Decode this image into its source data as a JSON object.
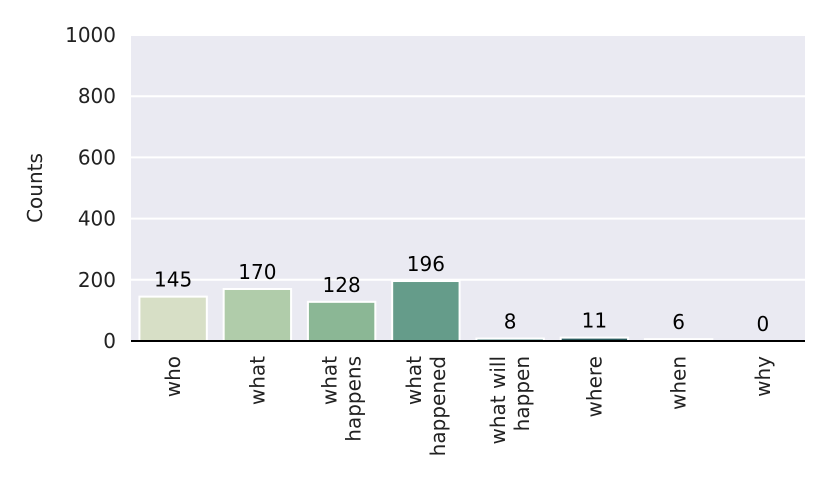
{
  "chart_data": {
    "type": "bar",
    "ylabel": "Counts",
    "xlabel": "",
    "ylim": [
      0,
      1000
    ],
    "yticks": [
      "0",
      "200",
      "400",
      "600",
      "800",
      "1000"
    ],
    "grid": true,
    "categories": [
      [
        "who"
      ],
      [
        "what"
      ],
      [
        "what",
        "happens"
      ],
      [
        "what",
        "happened"
      ],
      [
        "what will",
        "happen"
      ],
      [
        "where"
      ],
      [
        "when"
      ],
      [
        "why"
      ]
    ],
    "values": [
      145,
      170,
      128,
      196,
      8,
      11,
      6,
      0
    ],
    "labels": [
      "145",
      "170",
      "128",
      "196",
      "8",
      "11",
      "6",
      "0"
    ],
    "colors": [
      "#d7dfc6",
      "#b0ccaa",
      "#8bb795",
      "#659c8a",
      "#3d7a78",
      "#2a5b5e",
      "#1a3d45",
      "#0f2530"
    ]
  }
}
